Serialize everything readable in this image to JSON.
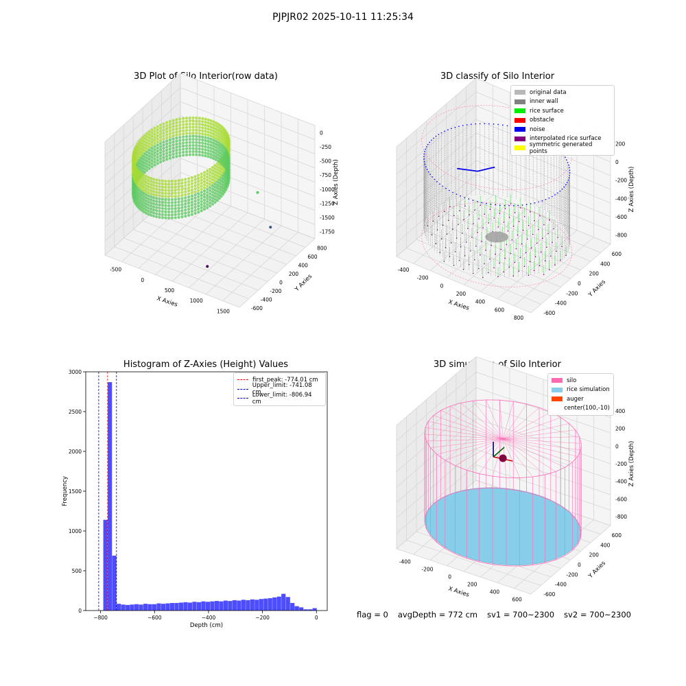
{
  "figure": {
    "suptitle": "PJPJR02 2025-10-11 11:25:34",
    "status": {
      "flag": "flag = 0",
      "avg_depth": "avgDepth = 772 cm",
      "sv1": "sv1 = 700~2300",
      "sv2": "sv2 = 700~2300"
    }
  },
  "chart_data": [
    {
      "type": "scatter",
      "projection": "3d",
      "title": "3D Plot of Silo Interior(row data)",
      "xlabel": "X Axies",
      "ylabel": "Y Axies",
      "zlabel": "Z Axies (Depth)",
      "x_ticks": [
        "-500",
        "0",
        "500",
        "1000",
        "1500"
      ],
      "y_ticks": [
        "-600",
        "-400",
        "-200",
        "0",
        "200",
        "400",
        "600",
        "800"
      ],
      "z_ticks": [
        "0",
        "-250",
        "-500",
        "-750",
        "-1000",
        "-1250",
        "-1500",
        "-1750"
      ],
      "xlim": [
        -650,
        1650
      ],
      "ylim": [
        -650,
        850
      ],
      "zlim": [
        -1900,
        100
      ],
      "colormap": "viridis",
      "silo": {
        "center": [
          100,
          -10
        ],
        "radius": 690,
        "z_top": -250,
        "z_bottom": -900
      },
      "outliers": [
        {
          "x": 1450,
          "y": 200,
          "z": -1250
        },
        {
          "x": 1100,
          "y": 350,
          "z": -900
        },
        {
          "x": 800,
          "y": -300,
          "z": -1800
        }
      ]
    },
    {
      "type": "scatter",
      "projection": "3d",
      "title": "3D classify of Silo Interior",
      "xlabel": "X Axies",
      "ylabel": "Y Axies",
      "zlabel": "Z Axies (Depth)",
      "x_ticks": [
        "-400",
        "-200",
        "0",
        "200",
        "400",
        "600",
        "800"
      ],
      "y_ticks": [
        "-600",
        "-400",
        "-200",
        "0",
        "200",
        "400",
        "600"
      ],
      "z_ticks": [
        "200",
        "0",
        "-200",
        "-400",
        "-600",
        "-800"
      ],
      "xlim": [
        -500,
        820
      ],
      "ylim": [
        -680,
        680
      ],
      "zlim": [
        -900,
        320
      ],
      "legend": [
        {
          "label": "original data",
          "color": "#b8b8b8"
        },
        {
          "label": "inner wall",
          "color": "#808080"
        },
        {
          "label": "rice surface",
          "color": "#00ee00"
        },
        {
          "label": "obstacle",
          "color": "#ff0000"
        },
        {
          "label": "noise",
          "color": "#0000ee"
        },
        {
          "label": "interpolated rice surface",
          "color": "#800080"
        },
        {
          "label": "symmetric generated points",
          "color": "#ffff00"
        }
      ],
      "silo": {
        "center": [
          100,
          -10
        ],
        "radius": 640,
        "z_top": 220,
        "z_bottom": -860
      },
      "wall_points": {
        "z_top": 30,
        "z_bottom": -760
      },
      "rice_level": -774,
      "noise_cluster": {
        "x": -60,
        "y": -60,
        "z": -30
      }
    },
    {
      "type": "bar",
      "title": "Histogram of Z-Axies (Height) Values",
      "xlabel": "Depth (cm)",
      "ylabel": "Frequency",
      "xlim": [
        -855,
        40
      ],
      "ylim": [
        0,
        3000
      ],
      "x_ticks": [
        -800,
        -600,
        -400,
        -200,
        0
      ],
      "y_ticks": [
        0,
        500,
        1000,
        1500,
        2000,
        2500,
        3000
      ],
      "bin_width": 16.5,
      "bins_start": [
        -790,
        -773.5,
        -757,
        -740.5,
        -724,
        -707.5,
        -691,
        -674.5,
        -658,
        -641.5,
        -625,
        -608.5,
        -592,
        -575.5,
        -559,
        -542.5,
        -526,
        -509.5,
        -493,
        -476.5,
        -460,
        -443.5,
        -427,
        -410.5,
        -394,
        -377.5,
        -361,
        -344.5,
        -328,
        -311.5,
        -295,
        -278.5,
        -262,
        -245.5,
        -229,
        -212.5,
        -196,
        -179.5,
        -163,
        -146.5,
        -130,
        -113.5,
        -97,
        -80.5,
        -64,
        -47.5,
        -31,
        -14.5
      ],
      "values": [
        1140,
        2870,
        690,
        85,
        75,
        70,
        75,
        80,
        75,
        85,
        80,
        80,
        90,
        85,
        90,
        95,
        95,
        100,
        105,
        100,
        110,
        105,
        115,
        110,
        115,
        120,
        115,
        125,
        120,
        130,
        125,
        135,
        130,
        140,
        135,
        145,
        150,
        155,
        165,
        175,
        210,
        170,
        95,
        55,
        40,
        15,
        15,
        30
      ],
      "bar_color": "#4d4dff",
      "lines": [
        {
          "label": "first_peak: -774.01 cm",
          "x": -774.01,
          "color": "#ff0000"
        },
        {
          "label": "Upper_limit: -741.08 cm",
          "x": -741.08,
          "color": "#0000aa"
        },
        {
          "label": "Lower_limit: -806.94 cm",
          "x": -806.94,
          "color": "#0000aa"
        }
      ],
      "legend_position": "top-right"
    },
    {
      "type": "area",
      "projection": "3d",
      "title": "3D simulation of Silo Interior",
      "xlabel": "X Axies",
      "ylabel": "Y Axies",
      "zlabel": "Z Axies (Depth)",
      "x_ticks": [
        "-400",
        "-200",
        "0",
        "200",
        "400",
        "600"
      ],
      "y_ticks": [
        "-600",
        "-400",
        "-200",
        "0",
        "200",
        "400",
        "600"
      ],
      "z_ticks": [
        "400",
        "200",
        "0",
        "-200",
        "-400",
        "-600",
        "-800"
      ],
      "xlim": [
        -500,
        700
      ],
      "ylim": [
        -680,
        680
      ],
      "zlim": [
        -900,
        500
      ],
      "legend": [
        {
          "label": "silo",
          "color": "#ff69b4"
        },
        {
          "label": "rice simulation",
          "color": "#87ceeb"
        },
        {
          "label": "auger",
          "color": "#ff4500"
        },
        {
          "label": "center(100,-10)",
          "color": "none"
        }
      ],
      "silo": {
        "center": [
          100,
          -10
        ],
        "radius": 620,
        "z_top": 220,
        "z_bottom": -780
      },
      "rice_level": -772,
      "auger_center": [
        100,
        -10,
        0
      ]
    }
  ]
}
